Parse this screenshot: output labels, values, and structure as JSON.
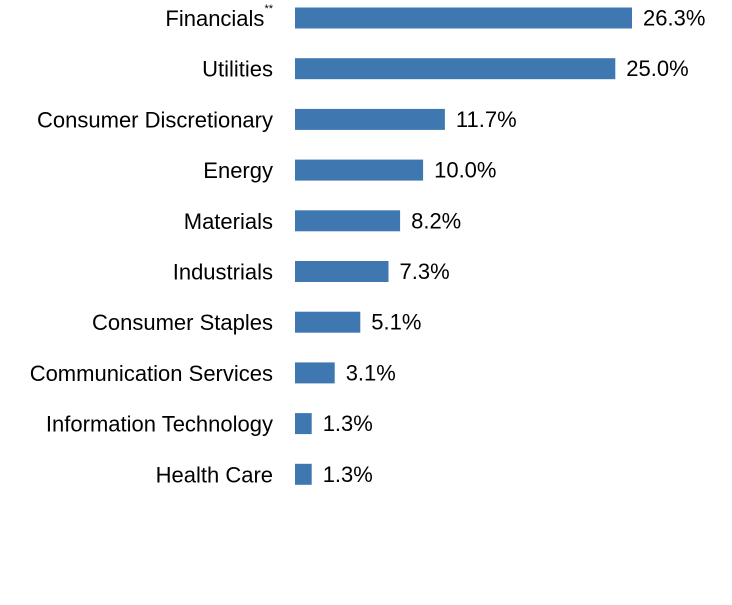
{
  "chart_data": {
    "type": "bar",
    "orientation": "horizontal",
    "title": "",
    "xlabel": "",
    "ylabel": "",
    "grid": false,
    "legend": "none",
    "bar_color": "#3f78b0",
    "value_suffix": "%",
    "xlim": [
      0,
      30
    ],
    "categories": [
      "Financials",
      "Utilities",
      "Consumer Discretionary",
      "Energy",
      "Materials",
      "Industrials",
      "Consumer Staples",
      "Communication Services",
      "Information Technology",
      "Health Care"
    ],
    "category_superscripts": [
      "**",
      "",
      "",
      "",
      "",
      "",
      "",
      "",
      "",
      ""
    ],
    "values": [
      26.3,
      25.0,
      11.7,
      10.0,
      8.2,
      7.3,
      5.1,
      3.1,
      1.3,
      1.3
    ],
    "data_labels": [
      "26.3%",
      "25.0%",
      "11.7%",
      "10.0%",
      "8.2%",
      "7.3%",
      "5.1%",
      "3.1%",
      "1.3%",
      "1.3%"
    ]
  }
}
